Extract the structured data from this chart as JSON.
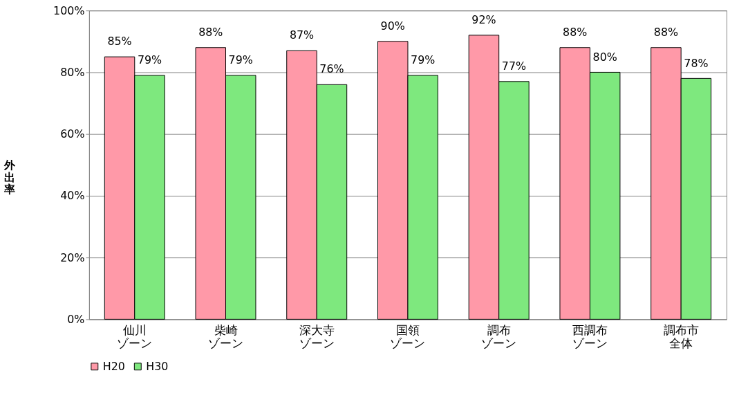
{
  "chart_data": {
    "type": "bar",
    "ylabel": "外出率",
    "categories": [
      "仙川ゾーン",
      "柴崎ゾーン",
      "深大寺ゾーン",
      "国領ゾーン",
      "調布ゾーン",
      "西調布ゾーン",
      "調布市全体"
    ],
    "series": [
      {
        "name": "H20",
        "color": "#ff99a8",
        "values": [
          85,
          88,
          87,
          90,
          92,
          88,
          88
        ],
        "value_labels": [
          "85%",
          "88%",
          "87%",
          "90%",
          "92%",
          "88%",
          "88%"
        ]
      },
      {
        "name": "H30",
        "color": "#7ee87e",
        "values": [
          79,
          79,
          76,
          79,
          77,
          80,
          78
        ],
        "value_labels": [
          "79%",
          "79%",
          "76%",
          "79%",
          "77%",
          "80%",
          "78%"
        ]
      }
    ],
    "ylim": [
      0,
      100
    ],
    "yticks": [
      {
        "value": 0,
        "label": "0%"
      },
      {
        "value": 20,
        "label": "20%"
      },
      {
        "value": 40,
        "label": "40%"
      },
      {
        "value": 60,
        "label": "60%"
      },
      {
        "value": 80,
        "label": "80%"
      },
      {
        "value": 100,
        "label": "100%"
      }
    ],
    "grid": "y",
    "legend": "bottom"
  }
}
